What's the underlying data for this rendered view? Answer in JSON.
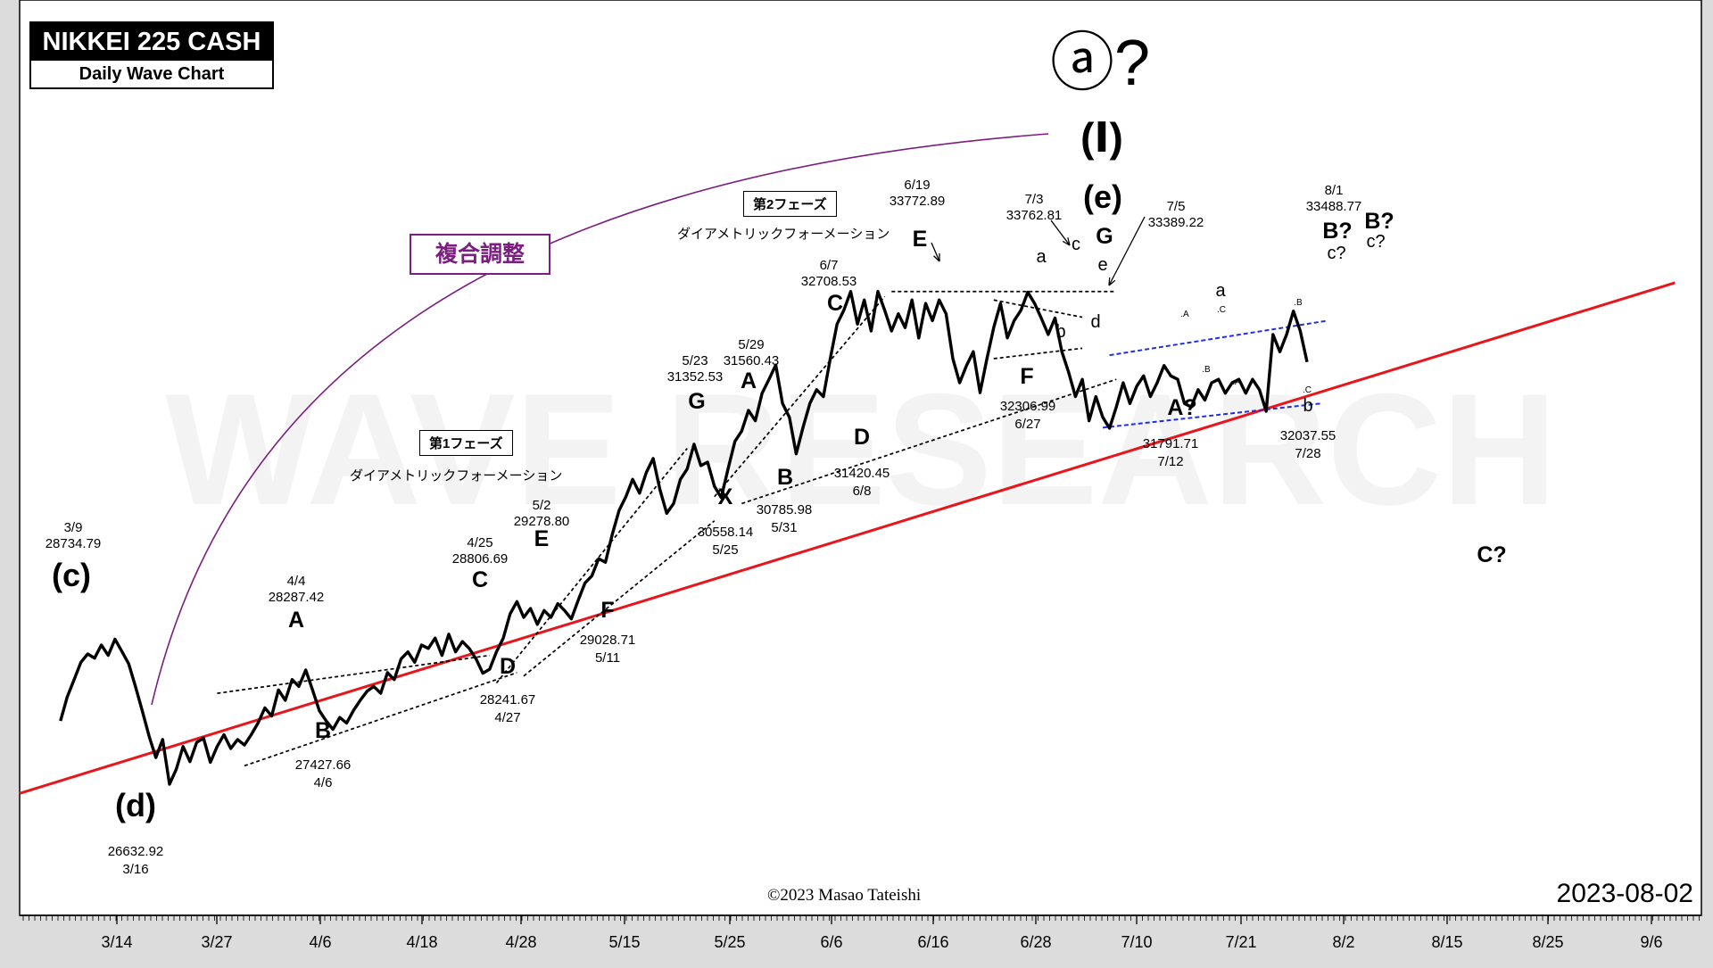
{
  "header": {
    "title": "NIKKEI 225 CASH",
    "subtitle": "Daily Wave Chart"
  },
  "date_stamp": "2023-08-02",
  "copyright": "©2023 Masao Tateishi",
  "watermark": "WAVE RESEARCH",
  "complex_label": "複合調整",
  "phase1": {
    "label": "第1フェーズ",
    "note": "ダイアメトリックフォーメーション"
  },
  "phase2": {
    "label": "第2フェーズ",
    "note": "ダイアメトリックフォーメーション"
  },
  "colors": {
    "price": "#000000",
    "support": "#e8161b",
    "channel": "#1f2ee6",
    "arc": "#7a1f7f",
    "frame": "#ffffff"
  },
  "chart_data": {
    "type": "line",
    "x_ticks": [
      "3/14",
      "3/27",
      "4/6",
      "4/18",
      "4/28",
      "5/15",
      "5/25",
      "6/6",
      "6/16",
      "6/28",
      "7/10",
      "7/21",
      "8/2",
      "8/15",
      "8/25",
      "9/6"
    ],
    "wave_labels": [
      {
        "text": "ⓐ?"
      },
      {
        "text": "(Ⅰ)"
      },
      {
        "text": "(e)"
      },
      {
        "text": "(c)"
      },
      {
        "text": "(d)"
      },
      {
        "text": "A"
      },
      {
        "text": "B"
      },
      {
        "text": "C"
      },
      {
        "text": "D"
      },
      {
        "text": "E"
      },
      {
        "text": "F"
      },
      {
        "text": "G"
      },
      {
        "text": "X"
      },
      {
        "text": "A"
      },
      {
        "text": "B"
      },
      {
        "text": "C"
      },
      {
        "text": "D"
      },
      {
        "text": "E"
      },
      {
        "text": "F"
      },
      {
        "text": "G"
      },
      {
        "text": "a"
      },
      {
        "text": "b"
      },
      {
        "text": "c"
      },
      {
        "text": "d"
      },
      {
        "text": "e"
      },
      {
        "text": "A?"
      },
      {
        "text": "a"
      },
      {
        "text": "b"
      },
      {
        "text": "B?"
      },
      {
        "text": "c?"
      },
      {
        "text": "B?"
      },
      {
        "text": "c?"
      },
      {
        "text": "C?"
      },
      {
        "text": ".A"
      },
      {
        "text": ".C"
      },
      {
        "text": ".B"
      },
      {
        "text": ".A"
      },
      {
        "text": ".B"
      },
      {
        "text": ".C"
      }
    ],
    "annotations": [
      {
        "date": "3/9",
        "value": "28734.79"
      },
      {
        "date": "3/16",
        "value": "26632.92"
      },
      {
        "date": "4/4",
        "value": "28287.42"
      },
      {
        "date": "4/6",
        "value": "27427.66"
      },
      {
        "date": "4/25",
        "value": "28806.69"
      },
      {
        "date": "4/27",
        "value": "28241.67"
      },
      {
        "date": "5/2",
        "value": "29278.80"
      },
      {
        "date": "5/11",
        "value": "29028.71"
      },
      {
        "date": "5/23",
        "value": "31352.53"
      },
      {
        "date": "5/25",
        "value": "30558.14"
      },
      {
        "date": "5/29",
        "value": "31560.43"
      },
      {
        "date": "5/31",
        "value": "30785.98"
      },
      {
        "date": "6/7",
        "value": "32708.53"
      },
      {
        "date": "6/8",
        "value": "31420.45"
      },
      {
        "date": "6/19",
        "value": "33772.89"
      },
      {
        "date": "6/27",
        "value": "32306.99"
      },
      {
        "date": "7/3",
        "value": "33762.81"
      },
      {
        "date": "7/5",
        "value": "33389.22"
      },
      {
        "date": "7/12",
        "value": "31791.71"
      },
      {
        "date": "7/28",
        "value": "32037.55"
      },
      {
        "date": "8/1",
        "value": "33488.77"
      }
    ],
    "series": [
      {
        "values": [
          [
            3.0,
            27550
          ],
          [
            3.5,
            27900
          ],
          [
            4.0,
            28150
          ],
          [
            4.5,
            28400
          ],
          [
            5.0,
            28520
          ],
          [
            5.5,
            28460
          ],
          [
            6.0,
            28650
          ],
          [
            6.5,
            28500
          ],
          [
            7.0,
            28734.79
          ],
          [
            7.5,
            28560
          ],
          [
            8.0,
            28380
          ],
          [
            8.5,
            28050
          ],
          [
            9.0,
            27700
          ],
          [
            9.5,
            27330
          ],
          [
            10.0,
            27020
          ],
          [
            10.5,
            27280
          ],
          [
            11.0,
            26632.92
          ],
          [
            11.5,
            26850
          ],
          [
            12.0,
            27180
          ],
          [
            12.5,
            26960
          ],
          [
            13.0,
            27240
          ],
          [
            13.5,
            27300
          ],
          [
            14.0,
            26950
          ],
          [
            14.5,
            27180
          ],
          [
            15.0,
            27350
          ],
          [
            15.5,
            27150
          ],
          [
            16.0,
            27280
          ],
          [
            16.5,
            27200
          ],
          [
            17.0,
            27350
          ],
          [
            17.5,
            27520
          ],
          [
            18.0,
            27740
          ],
          [
            18.5,
            27620
          ],
          [
            19.0,
            28000
          ],
          [
            19.5,
            27850
          ],
          [
            20.0,
            28150
          ],
          [
            20.5,
            28050
          ],
          [
            21.0,
            28287.42
          ],
          [
            21.5,
            28000
          ],
          [
            22.0,
            27700
          ],
          [
            22.5,
            27550
          ],
          [
            23.0,
            27427.66
          ],
          [
            23.5,
            27600
          ],
          [
            24.0,
            27520
          ],
          [
            24.5,
            27700
          ],
          [
            25.0,
            27850
          ],
          [
            25.5,
            27980
          ],
          [
            26.0,
            28050
          ],
          [
            26.5,
            27950
          ],
          [
            27.0,
            28250
          ],
          [
            27.5,
            28150
          ],
          [
            28.0,
            28450
          ],
          [
            28.5,
            28550
          ],
          [
            29.0,
            28400
          ],
          [
            29.5,
            28650
          ],
          [
            30.0,
            28600
          ],
          [
            30.5,
            28750
          ],
          [
            31.0,
            28500
          ],
          [
            31.5,
            28806.69
          ],
          [
            32.0,
            28550
          ],
          [
            32.5,
            28700
          ],
          [
            33.0,
            28600
          ],
          [
            33.5,
            28450
          ],
          [
            34.0,
            28241.67
          ],
          [
            34.5,
            28300
          ],
          [
            35.0,
            28550
          ],
          [
            35.5,
            28750
          ],
          [
            36.0,
            29100
          ],
          [
            36.5,
            29278.8
          ],
          [
            37.0,
            29050
          ],
          [
            37.5,
            29180
          ],
          [
            38.0,
            28950
          ],
          [
            38.5,
            29150
          ],
          [
            39.0,
            29050
          ],
          [
            39.5,
            29250
          ],
          [
            40.0,
            29150
          ],
          [
            40.5,
            29028.71
          ],
          [
            41.0,
            29300
          ],
          [
            41.5,
            29550
          ],
          [
            42.0,
            29650
          ],
          [
            42.5,
            29900
          ],
          [
            43.0,
            29850
          ],
          [
            43.5,
            30250
          ],
          [
            44.0,
            30600
          ],
          [
            44.5,
            30800
          ],
          [
            45.0,
            31050
          ],
          [
            45.5,
            30850
          ],
          [
            46.0,
            31150
          ],
          [
            46.5,
            31352.53
          ],
          [
            47.0,
            30900
          ],
          [
            47.5,
            30558.14
          ],
          [
            48.0,
            30700
          ],
          [
            48.5,
            31050
          ],
          [
            49.0,
            31200
          ],
          [
            49.5,
            31560.43
          ],
          [
            50.0,
            31250
          ],
          [
            50.5,
            31300
          ],
          [
            51.0,
            30950
          ],
          [
            51.5,
            30785.98
          ],
          [
            52.0,
            31200
          ],
          [
            52.5,
            31600
          ],
          [
            53.0,
            31750
          ],
          [
            53.5,
            32050
          ],
          [
            54.0,
            31900
          ],
          [
            54.5,
            32300
          ],
          [
            55.0,
            32500
          ],
          [
            55.5,
            32708.53
          ],
          [
            56.0,
            32150
          ],
          [
            56.5,
            31950
          ],
          [
            57.0,
            31420.45
          ],
          [
            57.5,
            31800
          ],
          [
            58.0,
            32150
          ],
          [
            58.5,
            32350
          ],
          [
            59.0,
            32250
          ],
          [
            59.5,
            32800
          ],
          [
            60.0,
            33300
          ],
          [
            60.5,
            33500
          ],
          [
            61.0,
            33772.89
          ],
          [
            61.5,
            33300
          ],
          [
            62.0,
            33650
          ],
          [
            62.5,
            33200
          ],
          [
            63.0,
            33772.89
          ],
          [
            63.5,
            33500
          ],
          [
            64.0,
            33200
          ],
          [
            64.5,
            33450
          ],
          [
            65.0,
            33250
          ],
          [
            65.5,
            33650
          ],
          [
            66.0,
            33100
          ],
          [
            66.5,
            33600
          ],
          [
            67.0,
            33350
          ],
          [
            67.5,
            33650
          ],
          [
            68.0,
            33450
          ],
          [
            68.5,
            32800
          ],
          [
            69.0,
            32450
          ],
          [
            69.5,
            32700
          ],
          [
            70.0,
            32900
          ],
          [
            70.5,
            32306.99
          ],
          [
            71.0,
            32800
          ],
          [
            71.5,
            33250
          ],
          [
            72.0,
            33600
          ],
          [
            72.5,
            33100
          ],
          [
            73.0,
            33350
          ],
          [
            73.5,
            33500
          ],
          [
            74.0,
            33762.81
          ],
          [
            74.5,
            33600
          ],
          [
            75.0,
            33380
          ],
          [
            75.5,
            33150
          ],
          [
            76.0,
            33389.22
          ],
          [
            76.5,
            32900
          ],
          [
            77.0,
            32600
          ],
          [
            77.5,
            32250
          ],
          [
            78.0,
            32500
          ],
          [
            78.5,
            31900
          ],
          [
            79.0,
            32250
          ],
          [
            79.5,
            31950
          ],
          [
            80.0,
            31791.71
          ],
          [
            80.5,
            32100
          ],
          [
            81.0,
            32450
          ],
          [
            81.5,
            32150
          ],
          [
            82.0,
            32400
          ],
          [
            82.5,
            32550
          ],
          [
            83.0,
            32250
          ],
          [
            83.5,
            32450
          ],
          [
            84.0,
            32700
          ],
          [
            84.5,
            32550
          ],
          [
            85.0,
            32500
          ],
          [
            85.5,
            32150
          ],
          [
            86.0,
            32100
          ],
          [
            86.5,
            32350
          ],
          [
            87.0,
            32200
          ],
          [
            87.5,
            32450
          ],
          [
            88.0,
            32500
          ],
          [
            88.5,
            32300
          ],
          [
            89.0,
            32450
          ],
          [
            89.5,
            32500
          ],
          [
            90.0,
            32300
          ],
          [
            90.5,
            32500
          ],
          [
            91.0,
            32350
          ],
          [
            91.5,
            32037.55
          ],
          [
            92.0,
            33150
          ],
          [
            92.5,
            32900
          ],
          [
            93.0,
            33150
          ],
          [
            93.5,
            33488.77
          ],
          [
            94.0,
            33200
          ],
          [
            94.5,
            32750
          ]
        ]
      }
    ],
    "support_line": [
      [
        0,
        26500
      ],
      [
        121.5,
        33900
      ]
    ],
    "phase1_lines": [
      [
        [
          14.5,
          27950
        ],
        [
          34.5,
          28500
        ]
      ],
      [
        [
          16.5,
          26900
        ],
        [
          36.5,
          28250
        ]
      ],
      [
        [
          35.0,
          28100
        ],
        [
          49.0,
          31500
        ]
      ],
      [
        [
          37.0,
          28200
        ],
        [
          51.0,
          30450
        ]
      ]
    ],
    "phase2_lines": [
      [
        [
          51.0,
          30800
        ],
        [
          63.5,
          33700
        ]
      ],
      [
        [
          53.0,
          30700
        ],
        [
          80.5,
          32500
        ]
      ],
      [
        [
          64.0,
          33772.89
        ],
        [
          80.5,
          33772.89
        ]
      ]
    ],
    "tri_lines": [
      [
        [
          71.5,
          33650
        ],
        [
          78.0,
          33400
        ]
      ],
      [
        [
          71.5,
          32800
        ],
        [
          78.0,
          32950
        ]
      ]
    ],
    "channel_upper": [
      [
        80.0,
        32850
      ],
      [
        96.0,
        33350
      ]
    ],
    "channel_lower": [
      [
        79.5,
        31800
      ],
      [
        95.5,
        32150
      ]
    ],
    "xlim": [
      0,
      120
    ],
    "ylim": [
      25000,
      36500
    ]
  }
}
